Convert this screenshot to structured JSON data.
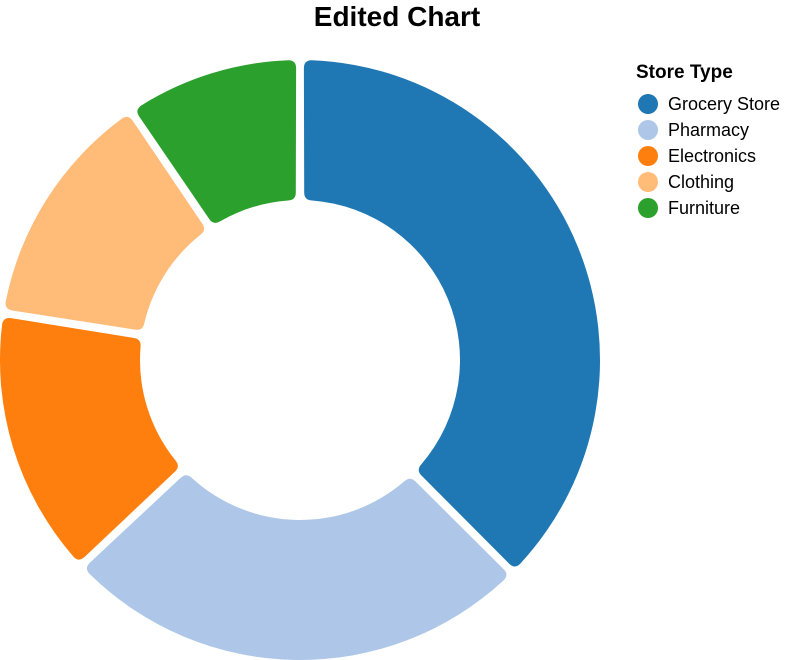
{
  "chart_data": {
    "type": "pie",
    "title": "Edited Chart",
    "legend_title": "Store Type",
    "legend_position": "top-right",
    "categories": [
      "Grocery Store",
      "Pharmacy",
      "Electronics",
      "Clothing",
      "Furniture"
    ],
    "values": [
      37.5,
      25.5,
      14.5,
      13.0,
      9.5
    ],
    "colors": [
      "#1f77b4",
      "#aec7e8",
      "#ff7f0e",
      "#ffbb78",
      "#2ca02c"
    ]
  }
}
